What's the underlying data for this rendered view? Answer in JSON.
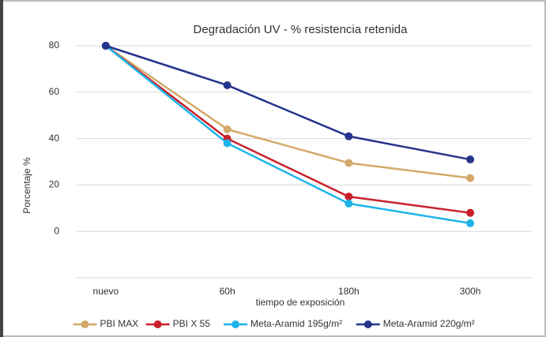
{
  "chart_data": {
    "type": "line",
    "title": "Degradación UV - % resistencia retenida",
    "xlabel": "tiempo de exposición",
    "ylabel": "Porcentaje %",
    "categories": [
      "nuevo",
      "60h",
      "180h",
      "300h"
    ],
    "series": [
      {
        "name": "PBI MAX",
        "color": "#d4a96a",
        "values": [
          80,
          44,
          29.5,
          23
        ]
      },
      {
        "name": "PBI X 55",
        "color": "#c8202a",
        "values": [
          80,
          40,
          15,
          8
        ]
      },
      {
        "name": "Meta-Aramid 195g/m²",
        "color": "#1eb4ea",
        "values": [
          80,
          38,
          12,
          3.5
        ]
      },
      {
        "name": "Meta-Aramid 220g/m²",
        "color": "#25348c",
        "values": [
          80,
          63,
          41,
          31
        ]
      }
    ],
    "ylim": [
      -20,
      80
    ],
    "yticks": [
      0,
      20,
      40,
      60,
      80
    ],
    "grid": true,
    "legend": "bottom"
  }
}
